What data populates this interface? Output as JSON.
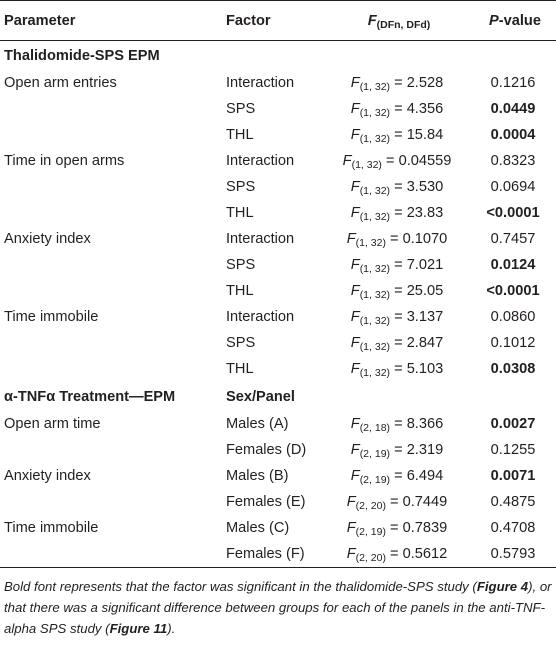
{
  "header": {
    "parameter": "Parameter",
    "factor": "Factor",
    "f_letter": "F",
    "f_sub": "(DFn, DFd)",
    "p_letter": "P",
    "p_rest": "-value"
  },
  "sections": [
    {
      "title": "Thalidomide-SPS EPM",
      "factor_header": "",
      "groups": [
        {
          "parameter": "Open arm entries",
          "rows": [
            {
              "factor": "Interaction",
              "df": "(1, 32)",
              "f": "2.528",
              "p": "0.1216",
              "bold": false
            },
            {
              "factor": "SPS",
              "df": "(1, 32)",
              "f": "4.356",
              "p": "0.0449",
              "bold": true
            },
            {
              "factor": "THL",
              "df": "(1, 32)",
              "f": "15.84",
              "p": "0.0004",
              "bold": true
            }
          ]
        },
        {
          "parameter": "Time in open arms",
          "rows": [
            {
              "factor": "Interaction",
              "df": "(1, 32)",
              "f": "0.04559",
              "p": "0.8323",
              "bold": false
            },
            {
              "factor": "SPS",
              "df": "(1, 32)",
              "f": "3.530",
              "p": "0.0694",
              "bold": false
            },
            {
              "factor": "THL",
              "df": "(1, 32)",
              "f": "23.83",
              "p": "<0.0001",
              "bold": true
            }
          ]
        },
        {
          "parameter": "Anxiety index",
          "rows": [
            {
              "factor": "Interaction",
              "df": "(1, 32)",
              "f": "0.1070",
              "p": "0.7457",
              "bold": false
            },
            {
              "factor": "SPS",
              "df": "(1, 32)",
              "f": "7.021",
              "p": "0.0124",
              "bold": true
            },
            {
              "factor": "THL",
              "df": "(1, 32)",
              "f": "25.05",
              "p": "<0.0001",
              "bold": true
            }
          ]
        },
        {
          "parameter": "Time immobile",
          "rows": [
            {
              "factor": "Interaction",
              "df": "(1, 32)",
              "f": "3.137",
              "p": "0.0860",
              "bold": false
            },
            {
              "factor": "SPS",
              "df": "(1, 32)",
              "f": "2.847",
              "p": "0.1012",
              "bold": false
            },
            {
              "factor": "THL",
              "df": "(1, 32)",
              "f": "5.103",
              "p": "0.0308",
              "bold": true
            }
          ]
        }
      ]
    },
    {
      "title": "α-TNFα Treatment—EPM",
      "factor_header": "Sex/Panel",
      "groups": [
        {
          "parameter": "Open arm time",
          "rows": [
            {
              "factor": "Males (A)",
              "df": "(2, 18)",
              "f": "8.366",
              "p": "0.0027",
              "bold": true
            },
            {
              "factor": "Females (D)",
              "df": "(2, 19)",
              "f": "2.319",
              "p": "0.1255",
              "bold": false
            }
          ]
        },
        {
          "parameter": "Anxiety index",
          "rows": [
            {
              "factor": "Males (B)",
              "df": "(2, 19)",
              "f": "6.494",
              "p": "0.0071",
              "bold": true
            },
            {
              "factor": "Females (E)",
              "df": "(2, 20)",
              "f": "0.7449",
              "p": "0.4875",
              "bold": false
            }
          ]
        },
        {
          "parameter": "Time immobile",
          "rows": [
            {
              "factor": "Males (C)",
              "df": "(2, 19)",
              "f": "0.7839",
              "p": "0.4708",
              "bold": false
            },
            {
              "factor": "Females (F)",
              "df": "(2, 20)",
              "f": "0.5612",
              "p": "0.5793",
              "bold": false
            }
          ]
        }
      ]
    }
  ],
  "footnote": {
    "part1": "Bold font represents that the factor was significant in the thalidomide-SPS study (",
    "ref1": "Figure 4",
    "part2": "), or that there was a significant difference between groups for each of the panels in the anti-TNF-alpha SPS study (",
    "ref2": "Figure 11",
    "part3": ")."
  }
}
